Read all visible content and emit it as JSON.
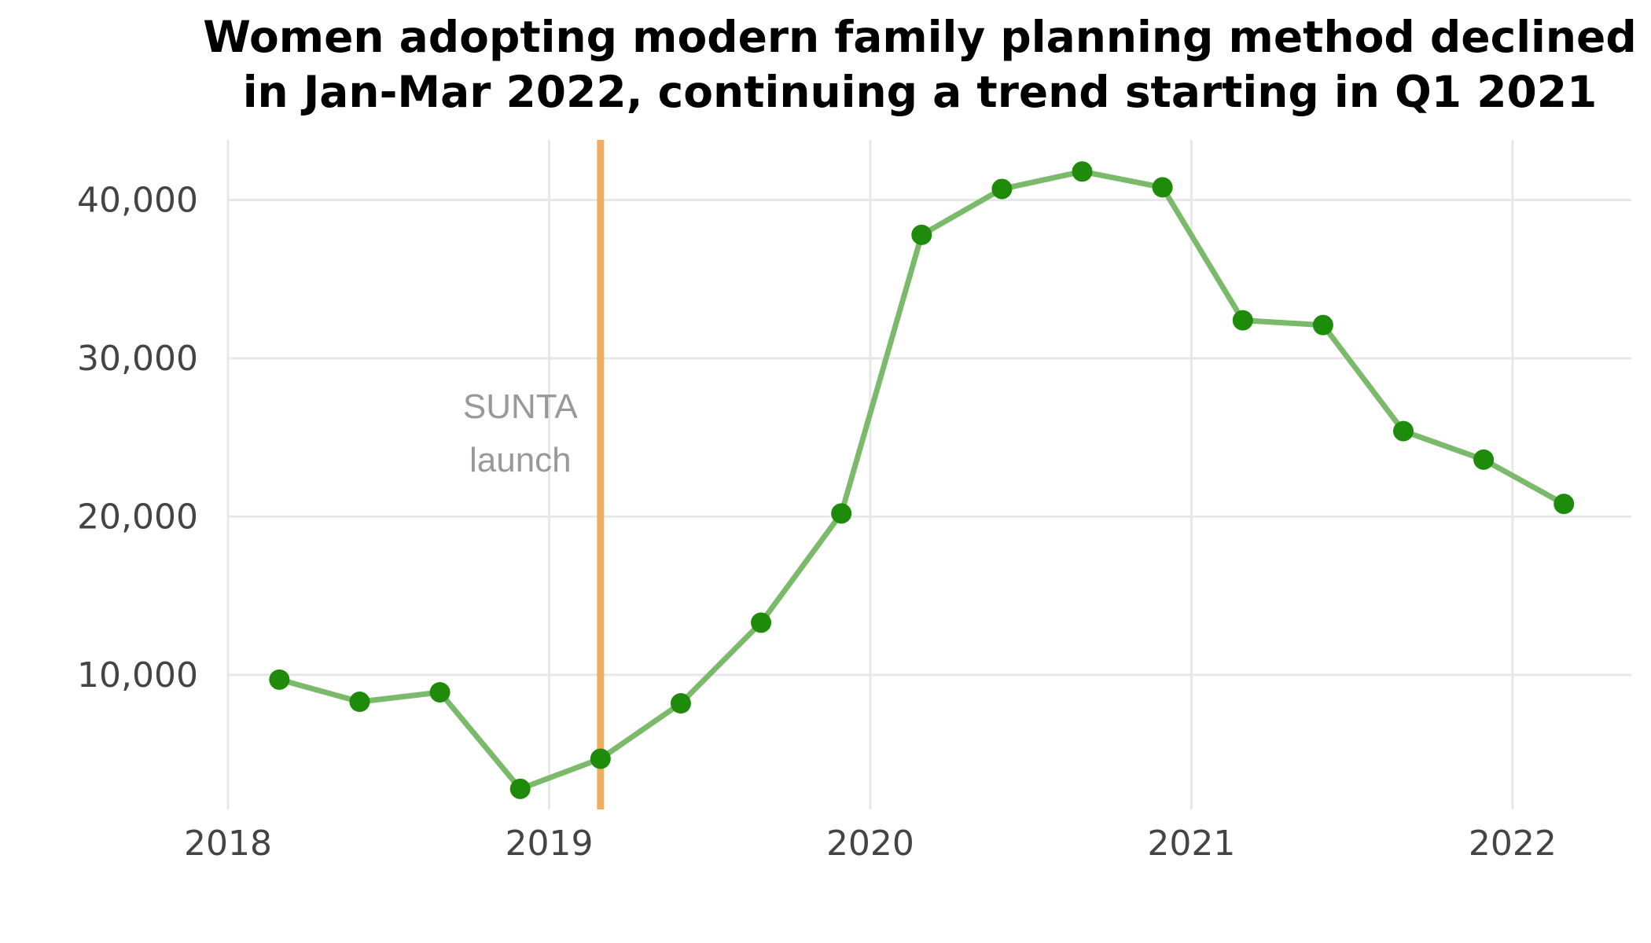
{
  "chart_data": {
    "type": "line",
    "title_lines": [
      "Women adopting modern family planning method declined",
      "in Jan-Mar 2022, continuing a trend starting in Q1 2021"
    ],
    "xlabel": "",
    "ylabel": "",
    "xlim": [
      2018.0,
      2022.37
    ],
    "ylim": [
      1500,
      43800
    ],
    "x_ticks": [
      {
        "value": 2018,
        "label": "2018"
      },
      {
        "value": 2019,
        "label": "2019"
      },
      {
        "value": 2020,
        "label": "2020"
      },
      {
        "value": 2021,
        "label": "2021"
      },
      {
        "value": 2022,
        "label": "2022"
      }
    ],
    "y_ticks": [
      {
        "value": 10000,
        "label": "10,000"
      },
      {
        "value": 20000,
        "label": "20,000"
      },
      {
        "value": 30000,
        "label": "30,000"
      },
      {
        "value": 40000,
        "label": "40,000"
      }
    ],
    "grid": true,
    "series": [
      {
        "line_color": "#7aba6a",
        "point_color": "#1e8b0a",
        "x": [
          2018.16,
          2018.41,
          2018.66,
          2018.91,
          2019.16,
          2019.41,
          2019.66,
          2019.91,
          2020.16,
          2020.41,
          2020.66,
          2020.91,
          2021.16,
          2021.41,
          2021.66,
          2021.91,
          2022.16
        ],
        "values": [
          9700,
          8300,
          8900,
          2800,
          4700,
          8200,
          13300,
          20200,
          37800,
          40700,
          41800,
          40800,
          32400,
          32100,
          25400,
          23600,
          20800
        ]
      }
    ],
    "annotations": [
      {
        "type": "vline",
        "x": 2019.16,
        "color": "#f0ae5e",
        "lines": [
          "SUNTA",
          "launch"
        ]
      }
    ]
  }
}
